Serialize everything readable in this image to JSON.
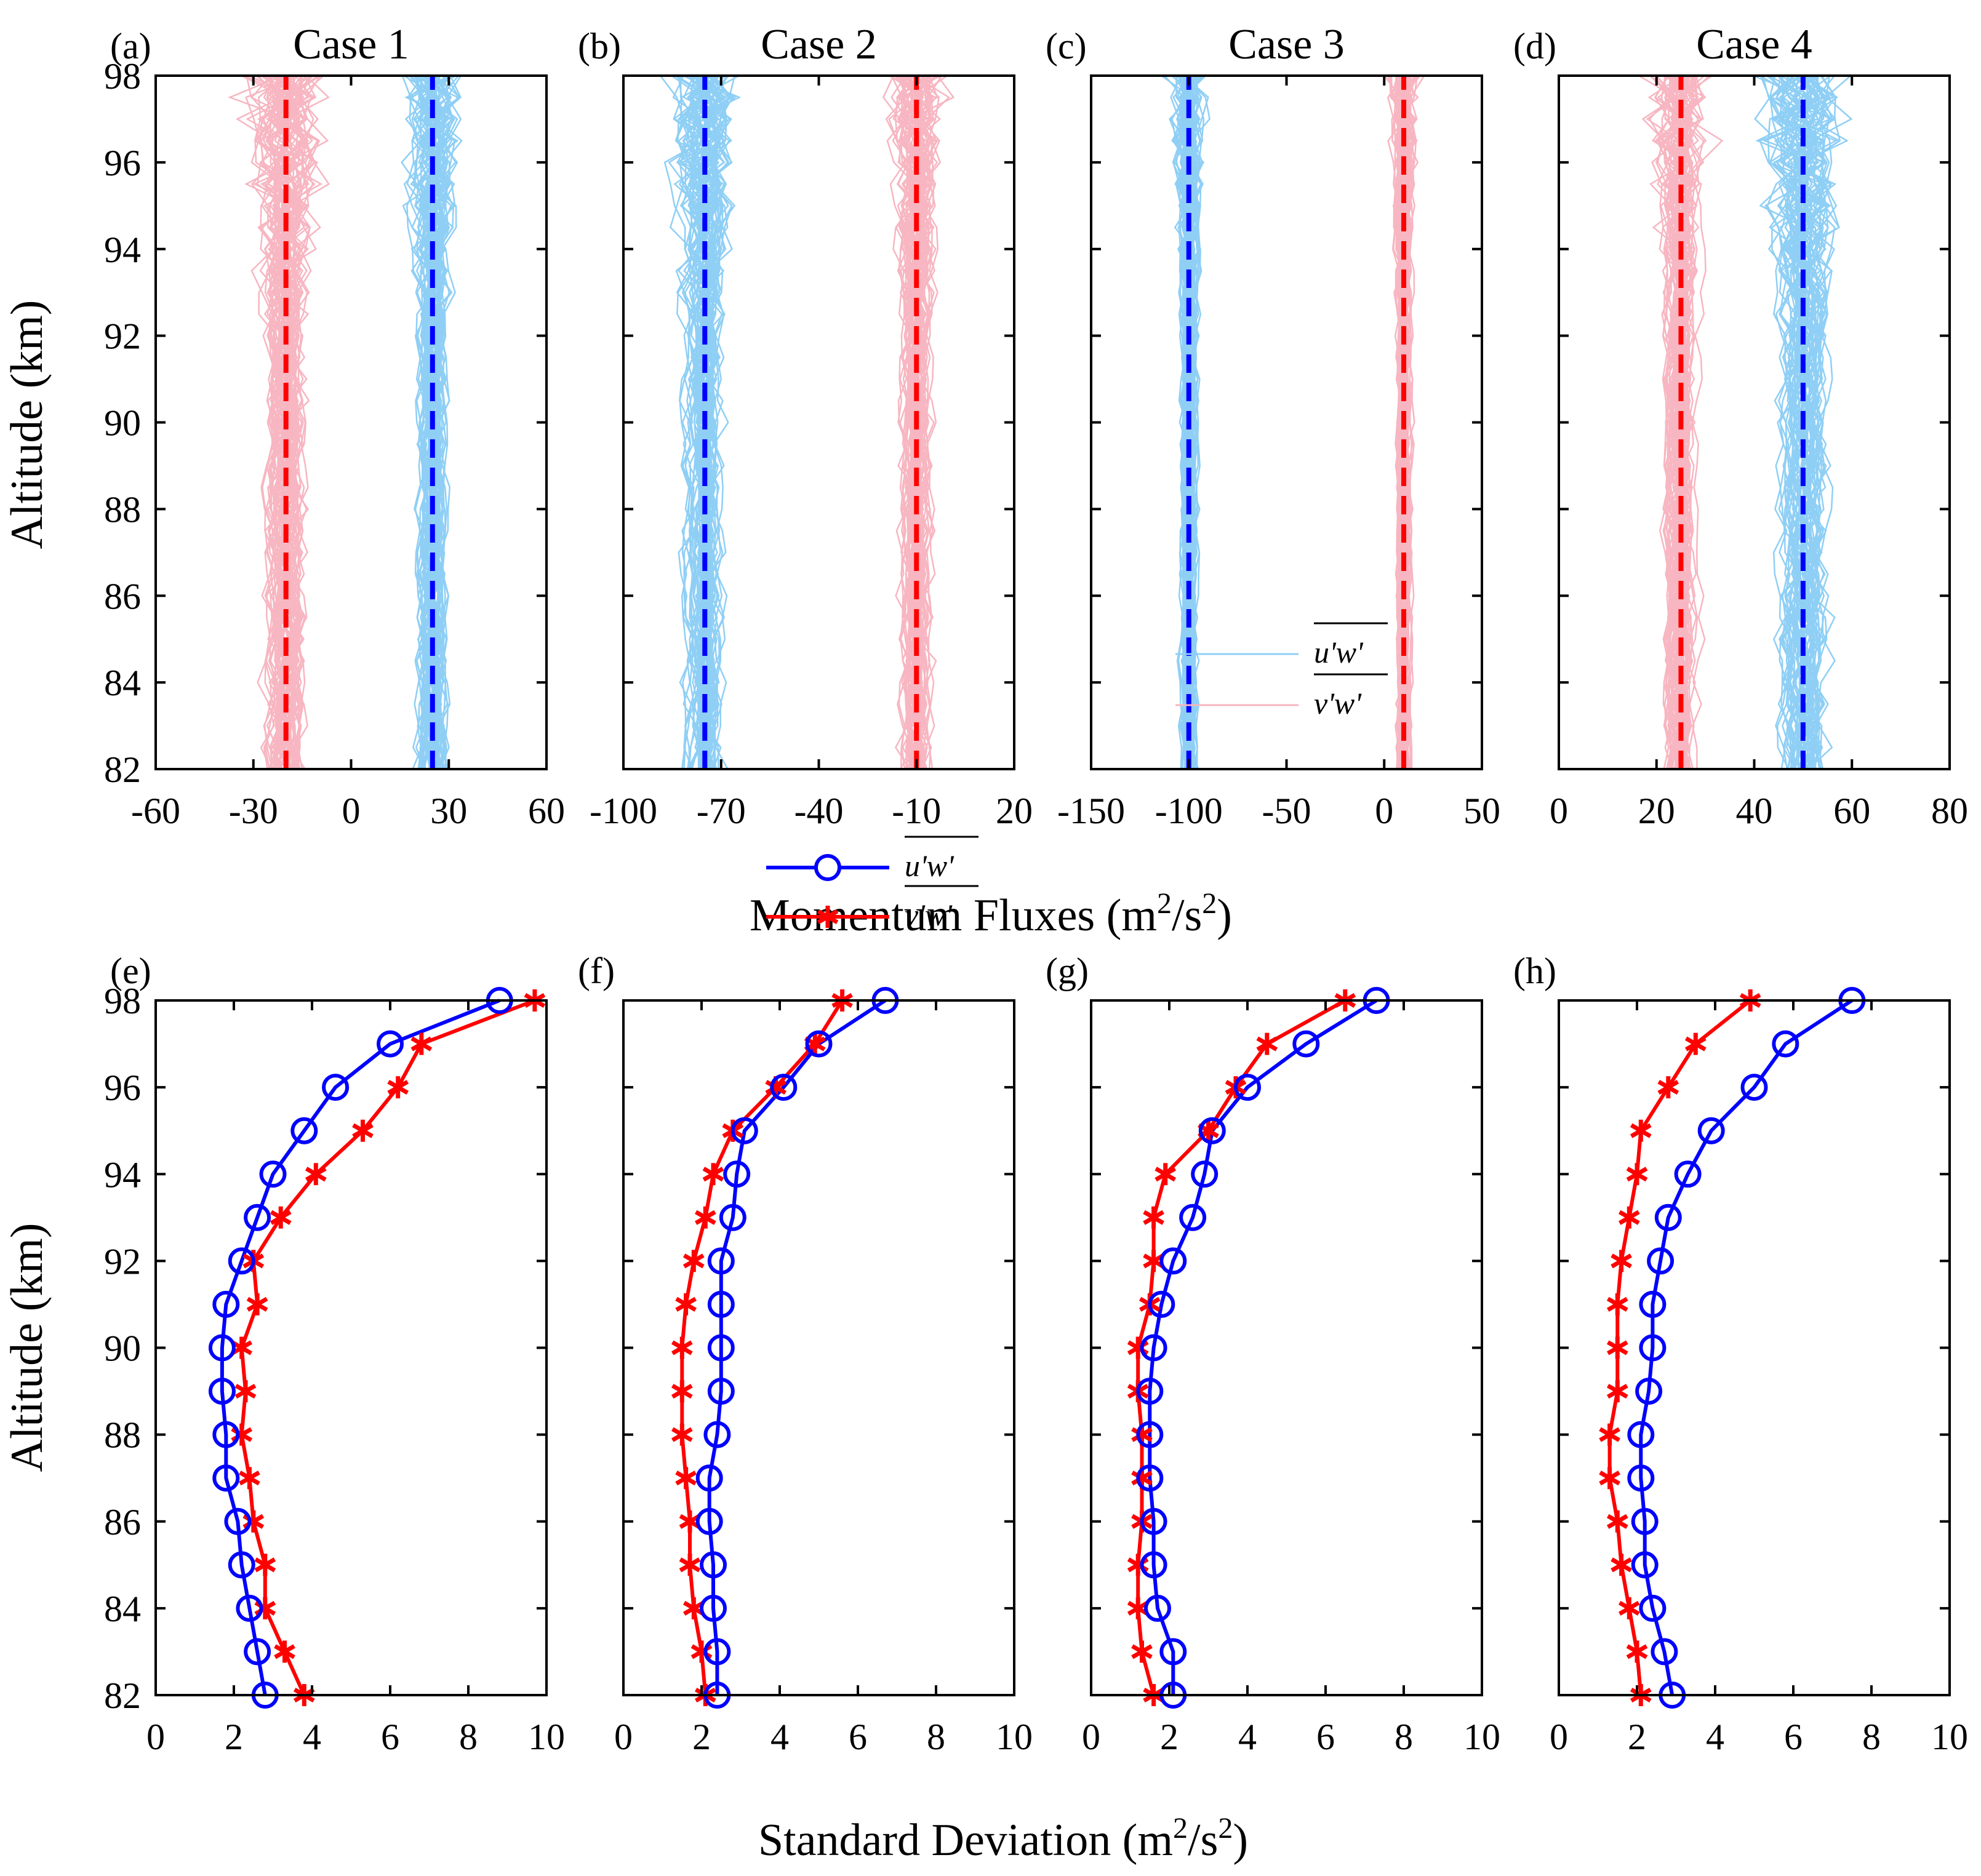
{
  "chart_data": {
    "type": "line",
    "shared_ylabel": "Altitude (km)",
    "top_row_xlabel": "Momentum Fluxes (m2/s2)",
    "top_row_xlabel_parts": {
      "text": "Momentum Fluxes (m",
      "sup1": "2",
      "mid": "/s",
      "sup2": "2",
      "end": ")"
    },
    "bottom_row_xlabel": "Standard Deviation (m2/s2)",
    "bottom_row_xlabel_parts": {
      "text": "Standard Deviation (m",
      "sup1": "2",
      "mid": "/s",
      "sup2": "2",
      "end": ")"
    },
    "ylim": [
      82,
      98
    ],
    "yticks": [
      82,
      84,
      86,
      88,
      90,
      92,
      94,
      96,
      98
    ],
    "colors": {
      "u_ensemble": "#8fcff5",
      "v_ensemble": "#f7b6c1",
      "u_mean": "#0000ff",
      "v_mean": "#ff0000",
      "u_std": "#0000ff",
      "v_std": "#ff0000"
    },
    "legend": {
      "u": "u'w'",
      "v": "v'w'"
    },
    "panels": [
      {
        "label": "(a)",
        "title": "Case 1",
        "type": "ensemble",
        "xlim": [
          -60,
          60
        ],
        "xticks": [
          -60,
          -30,
          0,
          30,
          60
        ],
        "xtick_labels": [
          "-60",
          "-30",
          "0",
          "30",
          "60"
        ],
        "u_mean": 25,
        "v_mean": -20,
        "u_spread": 6,
        "v_spread": 8,
        "legend": false
      },
      {
        "label": "(b)",
        "title": "Case 2",
        "type": "ensemble",
        "xlim": [
          -100,
          20
        ],
        "xticks": [
          -100,
          -70,
          -40,
          -10,
          20
        ],
        "xtick_labels": [
          "-100",
          "-70",
          "-40",
          "-10",
          "20"
        ],
        "u_mean": -75,
        "v_mean": -10,
        "u_spread": 7,
        "v_spread": 6,
        "legend": false
      },
      {
        "label": "(c)",
        "title": "Case 3",
        "type": "ensemble",
        "xlim": [
          -150,
          50
        ],
        "xticks": [
          -150,
          -100,
          -50,
          0,
          50
        ],
        "xtick_labels": [
          "-150",
          "-100",
          "-50",
          "0",
          "50"
        ],
        "u_mean": -100,
        "v_mean": 10,
        "u_spread": 6,
        "v_spread": 5,
        "legend": true
      },
      {
        "label": "(d)",
        "title": "Case 4",
        "type": "ensemble",
        "xlim": [
          0,
          80
        ],
        "xticks": [
          0,
          20,
          40,
          60,
          80
        ],
        "xtick_labels": [
          "0",
          "20",
          "40",
          "60",
          "80"
        ],
        "u_mean": 50,
        "v_mean": 25,
        "u_spread": 6,
        "v_spread": 4,
        "legend": false
      },
      {
        "label": "(e)",
        "title": "",
        "type": "std",
        "xlim": [
          0,
          10
        ],
        "xticks": [
          0,
          2,
          4,
          6,
          8,
          10
        ],
        "xtick_labels": [
          "0",
          "2",
          "4",
          "6",
          "8",
          "10"
        ],
        "altitudes": [
          82,
          83,
          84,
          85,
          86,
          87,
          88,
          89,
          90,
          91,
          92,
          93,
          94,
          95,
          96,
          97,
          98
        ],
        "u_std": [
          2.8,
          2.6,
          2.4,
          2.2,
          2.1,
          1.8,
          1.8,
          1.7,
          1.7,
          1.8,
          2.2,
          2.6,
          3.0,
          3.8,
          4.6,
          6.0,
          8.8
        ],
        "v_std": [
          3.8,
          3.3,
          2.8,
          2.8,
          2.5,
          2.4,
          2.2,
          2.3,
          2.2,
          2.6,
          2.5,
          3.2,
          4.1,
          5.3,
          6.2,
          6.8,
          9.7
        ],
        "legend": false
      },
      {
        "label": "(f)",
        "title": "",
        "type": "std",
        "xlim": [
          0,
          10
        ],
        "xticks": [
          0,
          2,
          4,
          6,
          8,
          10
        ],
        "xtick_labels": [
          "0",
          "2",
          "4",
          "6",
          "8",
          "10"
        ],
        "altitudes": [
          82,
          83,
          84,
          85,
          86,
          87,
          88,
          89,
          90,
          91,
          92,
          93,
          94,
          95,
          96,
          97,
          98
        ],
        "u_std": [
          2.4,
          2.4,
          2.3,
          2.3,
          2.2,
          2.2,
          2.4,
          2.5,
          2.5,
          2.5,
          2.5,
          2.8,
          2.9,
          3.1,
          4.1,
          5.0,
          6.7
        ],
        "v_std": [
          2.1,
          2.0,
          1.8,
          1.7,
          1.7,
          1.6,
          1.5,
          1.5,
          1.5,
          1.6,
          1.8,
          2.1,
          2.3,
          2.8,
          3.9,
          4.9,
          5.6
        ],
        "legend": true
      },
      {
        "label": "(g)",
        "title": "",
        "type": "std",
        "xlim": [
          0,
          10
        ],
        "xticks": [
          0,
          2,
          4,
          6,
          8,
          10
        ],
        "xtick_labels": [
          "0",
          "2",
          "4",
          "6",
          "8",
          "10"
        ],
        "altitudes": [
          82,
          83,
          84,
          85,
          86,
          87,
          88,
          89,
          90,
          91,
          92,
          93,
          94,
          95,
          96,
          97,
          98
        ],
        "u_std": [
          2.1,
          2.1,
          1.7,
          1.6,
          1.6,
          1.5,
          1.5,
          1.5,
          1.6,
          1.8,
          2.1,
          2.6,
          2.9,
          3.1,
          4.0,
          5.5,
          7.3
        ],
        "v_std": [
          1.6,
          1.3,
          1.2,
          1.2,
          1.3,
          1.3,
          1.3,
          1.2,
          1.2,
          1.5,
          1.6,
          1.6,
          1.9,
          3.0,
          3.7,
          4.5,
          6.5
        ],
        "legend": false
      },
      {
        "label": "(h)",
        "title": "",
        "type": "std",
        "xlim": [
          0,
          10
        ],
        "xticks": [
          0,
          2,
          4,
          6,
          8,
          10
        ],
        "xtick_labels": [
          "0",
          "2",
          "4",
          "6",
          "8",
          "10"
        ],
        "altitudes": [
          82,
          83,
          84,
          85,
          86,
          87,
          88,
          89,
          90,
          91,
          92,
          93,
          94,
          95,
          96,
          97,
          98
        ],
        "u_std": [
          2.9,
          2.7,
          2.4,
          2.2,
          2.2,
          2.1,
          2.1,
          2.3,
          2.4,
          2.4,
          2.6,
          2.8,
          3.3,
          3.9,
          5.0,
          5.8,
          7.5
        ],
        "v_std": [
          2.1,
          2.0,
          1.8,
          1.6,
          1.5,
          1.3,
          1.3,
          1.5,
          1.5,
          1.5,
          1.6,
          1.8,
          2.0,
          2.1,
          2.8,
          3.5,
          4.9
        ],
        "legend": false
      }
    ]
  }
}
